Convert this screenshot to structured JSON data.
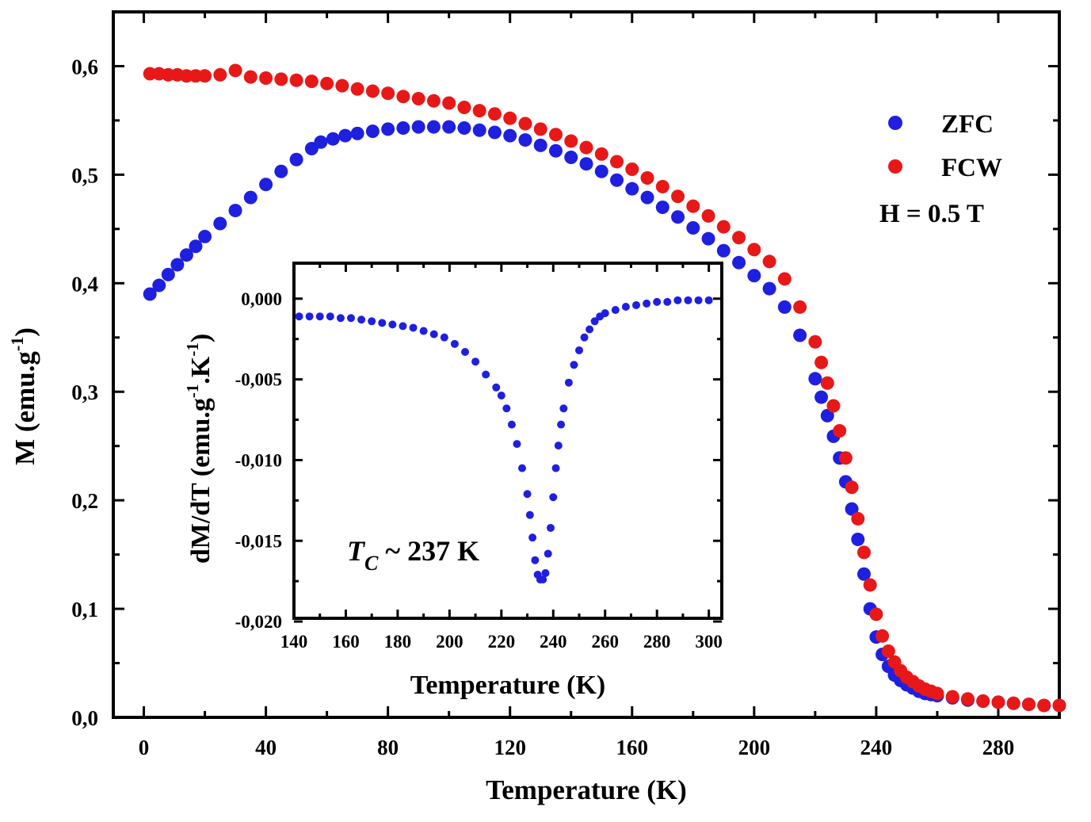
{
  "chart_data": [
    {
      "type": "scatter",
      "role": "main",
      "title": "",
      "xlabel": "Temperature (K)",
      "ylabel_main": "M (emu.g",
      "ylabel_sup": "-1",
      "ylabel_close": ")",
      "xlim": [
        -10,
        300
      ],
      "ylim": [
        0,
        0.65
      ],
      "xticks": [
        0,
        40,
        80,
        120,
        160,
        200,
        240,
        280
      ],
      "xtick_labels": [
        "0",
        "40",
        "80",
        "120",
        "160",
        "200",
        "240",
        "280"
      ],
      "yticks": [
        0,
        0.1,
        0.2,
        0.3,
        0.4,
        0.5,
        0.6
      ],
      "ytick_labels": [
        "0,0",
        "0,1",
        "0,2",
        "0,3",
        "0,4",
        "0,5",
        "0,6"
      ],
      "legend_position": "top-right",
      "annotation": "H = 0.5 T",
      "series": [
        {
          "name": "ZFC",
          "color": "#1f1fe0",
          "x": [
            2,
            5,
            8,
            11,
            14,
            17,
            20,
            25,
            30,
            35,
            40,
            45,
            50,
            55,
            58,
            62,
            66,
            70,
            75,
            80,
            85,
            90,
            95,
            100,
            105,
            110,
            115,
            120,
            125,
            130,
            135,
            140,
            145,
            150,
            155,
            160,
            165,
            170,
            175,
            180,
            185,
            190,
            195,
            200,
            205,
            210,
            215,
            220,
            222,
            224,
            226,
            228,
            230,
            232,
            234,
            236,
            238,
            240,
            242,
            244,
            246,
            248,
            250,
            252,
            254,
            256,
            258,
            260,
            265,
            270,
            275,
            280,
            285,
            290,
            295,
            300
          ],
          "y": [
            0.39,
            0.398,
            0.408,
            0.417,
            0.426,
            0.434,
            0.443,
            0.455,
            0.467,
            0.479,
            0.491,
            0.503,
            0.514,
            0.524,
            0.53,
            0.533,
            0.536,
            0.538,
            0.54,
            0.542,
            0.543,
            0.544,
            0.544,
            0.544,
            0.543,
            0.541,
            0.539,
            0.536,
            0.532,
            0.527,
            0.522,
            0.516,
            0.51,
            0.503,
            0.495,
            0.487,
            0.479,
            0.47,
            0.461,
            0.451,
            0.441,
            0.43,
            0.419,
            0.407,
            0.395,
            0.378,
            0.352,
            0.312,
            0.295,
            0.278,
            0.259,
            0.239,
            0.217,
            0.192,
            0.164,
            0.132,
            0.1,
            0.074,
            0.058,
            0.047,
            0.039,
            0.034,
            0.03,
            0.027,
            0.024,
            0.022,
            0.021,
            0.02,
            0.018,
            0.016,
            0.015,
            0.014,
            0.013,
            0.012,
            0.011,
            0.011
          ]
        },
        {
          "name": "FCW",
          "color": "#e81818",
          "x": [
            2,
            5,
            8,
            11,
            14,
            17,
            20,
            25,
            30,
            35,
            40,
            45,
            50,
            55,
            60,
            65,
            70,
            75,
            80,
            85,
            90,
            95,
            100,
            105,
            110,
            115,
            120,
            125,
            130,
            135,
            140,
            145,
            150,
            155,
            160,
            165,
            170,
            175,
            180,
            185,
            190,
            195,
            200,
            205,
            210,
            215,
            220,
            222,
            224,
            226,
            228,
            230,
            232,
            234,
            236,
            238,
            240,
            242,
            244,
            246,
            248,
            250,
            252,
            254,
            256,
            258,
            260,
            265,
            270,
            275,
            280,
            285,
            290,
            295,
            300
          ],
          "y": [
            0.593,
            0.593,
            0.592,
            0.592,
            0.591,
            0.591,
            0.591,
            0.592,
            0.596,
            0.59,
            0.589,
            0.588,
            0.587,
            0.586,
            0.584,
            0.582,
            0.579,
            0.577,
            0.575,
            0.572,
            0.57,
            0.568,
            0.566,
            0.562,
            0.559,
            0.556,
            0.552,
            0.547,
            0.542,
            0.537,
            0.531,
            0.525,
            0.519,
            0.512,
            0.505,
            0.497,
            0.489,
            0.48,
            0.471,
            0.462,
            0.452,
            0.442,
            0.431,
            0.42,
            0.404,
            0.378,
            0.346,
            0.327,
            0.308,
            0.287,
            0.264,
            0.239,
            0.212,
            0.183,
            0.152,
            0.122,
            0.095,
            0.075,
            0.061,
            0.051,
            0.043,
            0.037,
            0.033,
            0.029,
            0.026,
            0.024,
            0.022,
            0.019,
            0.017,
            0.015,
            0.014,
            0.013,
            0.012,
            0.011,
            0.011
          ]
        }
      ]
    },
    {
      "type": "scatter",
      "role": "inset",
      "xlabel": "Temperature (K)",
      "ylabel_pre": "dM/dT (emu.g",
      "ylabel_sup1": "-1",
      "ylabel_mid": ".K",
      "ylabel_sup2": "-1",
      "ylabel_close": ")",
      "xlim": [
        140,
        305
      ],
      "ylim": [
        -0.0198,
        0.0022
      ],
      "xticks": [
        140,
        160,
        180,
        200,
        220,
        240,
        260,
        280,
        300
      ],
      "xtick_labels": [
        "140",
        "160",
        "180",
        "200",
        "220",
        "240",
        "260",
        "280",
        "300"
      ],
      "yticks": [
        0.0,
        -0.005,
        -0.01,
        -0.015,
        -0.02
      ],
      "ytick_labels": [
        "0,000",
        "-0,005",
        "-0,010",
        "-0,015",
        "-0,020"
      ],
      "annotation_main": "T",
      "annotation_sub": "C",
      "annotation_rest": " ~ 237 K",
      "series": [
        {
          "name": "dM/dT",
          "color": "#1f1fe0",
          "x": [
            142,
            146,
            150,
            154,
            158,
            162,
            166,
            170,
            174,
            178,
            182,
            186,
            190,
            194,
            198,
            202,
            206,
            210,
            214,
            218,
            220,
            222,
            224,
            226,
            228,
            230,
            231,
            232,
            233,
            234,
            235,
            236,
            237,
            238,
            239,
            240,
            241,
            242,
            243,
            244,
            246,
            248,
            250,
            252,
            254,
            256,
            258,
            260,
            264,
            268,
            272,
            276,
            280,
            284,
            288,
            292,
            296,
            300
          ],
          "y": [
            -0.0011,
            -0.0011,
            -0.0011,
            -0.0011,
            -0.0012,
            -0.0012,
            -0.0013,
            -0.0014,
            -0.0015,
            -0.0016,
            -0.0017,
            -0.0018,
            -0.002,
            -0.0022,
            -0.0024,
            -0.0028,
            -0.0033,
            -0.0039,
            -0.0047,
            -0.0055,
            -0.006,
            -0.0068,
            -0.0078,
            -0.009,
            -0.0105,
            -0.0121,
            -0.0134,
            -0.0148,
            -0.0162,
            -0.0171,
            -0.0174,
            -0.0174,
            -0.017,
            -0.0158,
            -0.0142,
            -0.0123,
            -0.0105,
            -0.0091,
            -0.0078,
            -0.0068,
            -0.0052,
            -0.0041,
            -0.0032,
            -0.0024,
            -0.0019,
            -0.0014,
            -0.0011,
            -0.0009,
            -0.0007,
            -0.0005,
            -0.0004,
            -0.0003,
            -0.0002,
            -0.0002,
            -0.0001,
            -0.0001,
            -0.0001,
            -0.0001
          ]
        }
      ]
    }
  ]
}
